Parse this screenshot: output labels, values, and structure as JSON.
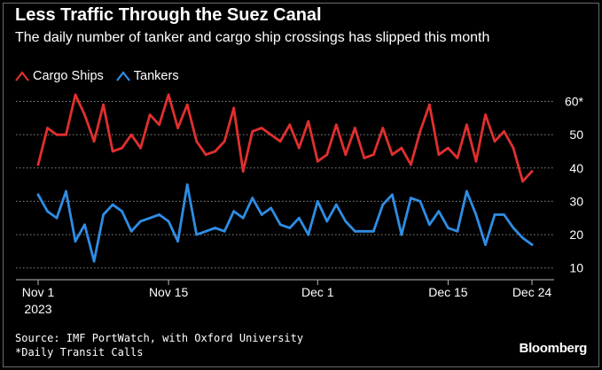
{
  "title": "Less Traffic Through the Suez Canal",
  "subtitle": "The daily number of tanker and cargo ship crossings has slipped this month",
  "source_line": "Source: IMF PortWatch, with Oxford University",
  "footnote_line": "*Daily Transit Calls",
  "brand": "Bloomberg",
  "chart_data": {
    "type": "line",
    "x_start": "2023-11-01",
    "x_end": "2023-12-24",
    "x_ticks": [
      {
        "date": "2023-11-01",
        "label": "Nov 1",
        "sublabel": "2023"
      },
      {
        "date": "2023-11-15",
        "label": "Nov 15"
      },
      {
        "date": "2023-12-01",
        "label": "Dec 1"
      },
      {
        "date": "2023-12-15",
        "label": "Dec 15"
      },
      {
        "date": "2023-12-24",
        "label": "Dec 24"
      }
    ],
    "y_ticks": [
      {
        "value": 10,
        "label": "10"
      },
      {
        "value": 20,
        "label": "20"
      },
      {
        "value": 30,
        "label": "30"
      },
      {
        "value": 40,
        "label": "40"
      },
      {
        "value": 50,
        "label": "50"
      },
      {
        "value": 60,
        "label": "60*"
      }
    ],
    "ylim": [
      7,
      62
    ],
    "grid": "dotted horizontal",
    "legend_position": "top-left",
    "series": [
      {
        "name": "Cargo Ships",
        "color": "#e0302f",
        "values": [
          41,
          52,
          50,
          50,
          62,
          56,
          48,
          59,
          45,
          46,
          50,
          46,
          56,
          53,
          62,
          52,
          59,
          48,
          44,
          45,
          48,
          58,
          39,
          51,
          52,
          50,
          48,
          53,
          46,
          54,
          42,
          44,
          53,
          44,
          52,
          43,
          44,
          52,
          44,
          46,
          41,
          51,
          59,
          44,
          46,
          43,
          53,
          42,
          56,
          48,
          51,
          46,
          36,
          39
        ]
      },
      {
        "name": "Tankers",
        "color": "#2f8de4",
        "values": [
          32,
          27,
          25,
          33,
          18,
          23,
          12,
          26,
          29,
          27,
          21,
          24,
          25,
          26,
          24,
          18,
          35,
          20,
          21,
          22,
          21,
          27,
          25,
          31,
          26,
          28,
          23,
          22,
          25,
          20,
          30,
          24,
          29,
          24,
          21,
          21,
          21,
          29,
          32,
          20,
          31,
          30,
          23,
          27,
          22,
          21,
          33,
          26,
          17,
          26,
          26,
          22,
          19,
          17
        ]
      }
    ]
  }
}
